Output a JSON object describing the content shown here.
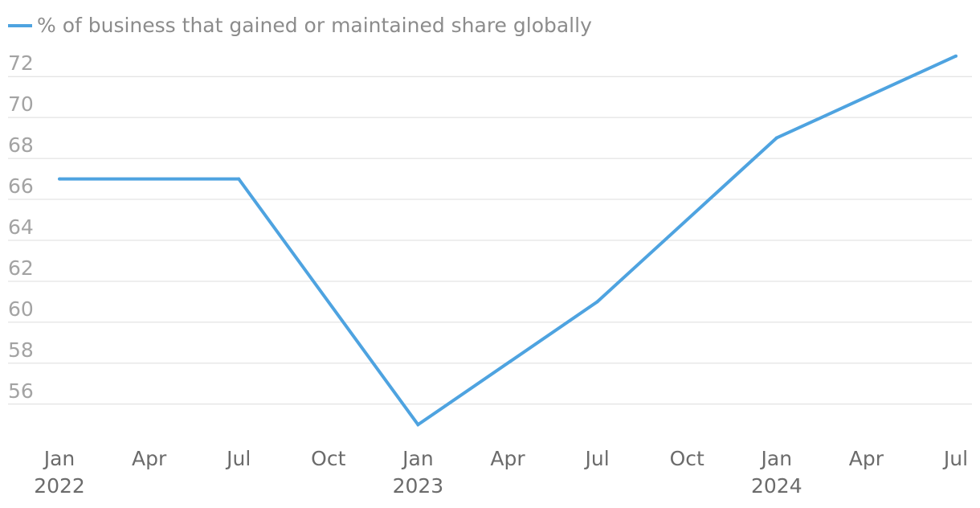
{
  "chart_data": {
    "type": "line",
    "x_tick_labels": [
      {
        "month": "Jan",
        "year": "2022"
      },
      {
        "month": "Apr",
        "year": ""
      },
      {
        "month": "Jul",
        "year": ""
      },
      {
        "month": "Oct",
        "year": ""
      },
      {
        "month": "Jan",
        "year": "2023"
      },
      {
        "month": "Apr",
        "year": ""
      },
      {
        "month": "Jul",
        "year": ""
      },
      {
        "month": "Oct",
        "year": ""
      },
      {
        "month": "Jan",
        "year": "2024"
      },
      {
        "month": "Apr",
        "year": ""
      },
      {
        "month": "Jul",
        "year": ""
      }
    ],
    "y_ticks": [
      56,
      58,
      60,
      62,
      64,
      66,
      68,
      70,
      72
    ],
    "ylim": [
      54.5,
      73.5
    ],
    "xlim": [
      "2022-01",
      "2024-07"
    ],
    "grid": true,
    "legend_position": "top-left",
    "series": [
      {
        "name": "% of business that gained or maintained share globally",
        "color": "#4ea3e0",
        "points": [
          {
            "x": "2022-01",
            "y": 67
          },
          {
            "x": "2022-07",
            "y": 67
          },
          {
            "x": "2023-01",
            "y": 55
          },
          {
            "x": "2023-07",
            "y": 61
          },
          {
            "x": "2024-01",
            "y": 69
          },
          {
            "x": "2024-07",
            "y": 73
          }
        ]
      }
    ]
  }
}
